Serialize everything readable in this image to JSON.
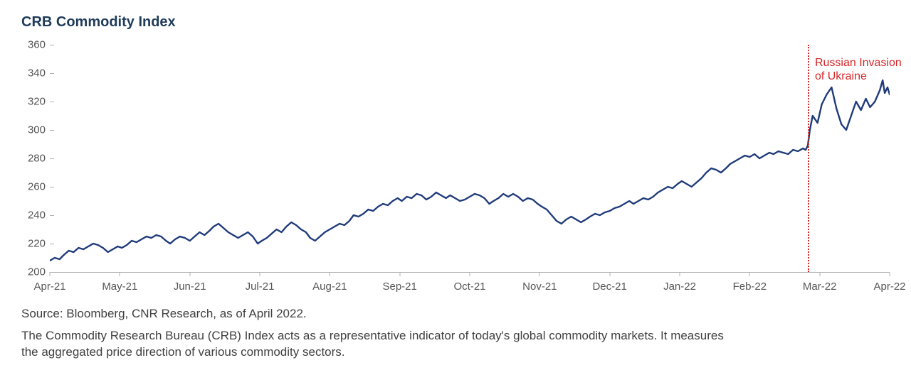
{
  "chart": {
    "type": "line",
    "title": "CRB Commodity Index",
    "title_color": "#1f3b5a",
    "title_fontsize": 20,
    "background_color": "#ffffff",
    "axis_color": "#b0b0b0",
    "tick_label_color": "#555555",
    "tick_fontsize": 15,
    "line_color": "#1f3b7a",
    "line_width": 2.4,
    "ylim": [
      200,
      360
    ],
    "ytick_step": 20,
    "yticks": [
      200,
      220,
      240,
      260,
      280,
      300,
      320,
      340,
      360
    ],
    "x_labels": [
      "Apr-21",
      "May-21",
      "Jun-21",
      "Jul-21",
      "Aug-21",
      "Sep-21",
      "Oct-21",
      "Nov-21",
      "Dec-21",
      "Jan-22",
      "Feb-22",
      "Mar-22",
      "Apr-22"
    ],
    "x_domain": [
      0,
      12
    ],
    "x_major": [
      0,
      1,
      2,
      3,
      4,
      5,
      6,
      7,
      8,
      9,
      10,
      11,
      12
    ],
    "data": [
      [
        0.0,
        208
      ],
      [
        0.07,
        210
      ],
      [
        0.14,
        209
      ],
      [
        0.2,
        212
      ],
      [
        0.27,
        215
      ],
      [
        0.34,
        214
      ],
      [
        0.41,
        217
      ],
      [
        0.48,
        216
      ],
      [
        0.55,
        218
      ],
      [
        0.62,
        220
      ],
      [
        0.69,
        219
      ],
      [
        0.76,
        217
      ],
      [
        0.83,
        214
      ],
      [
        0.9,
        216
      ],
      [
        0.97,
        218
      ],
      [
        1.03,
        217
      ],
      [
        1.1,
        219
      ],
      [
        1.17,
        222
      ],
      [
        1.24,
        221
      ],
      [
        1.31,
        223
      ],
      [
        1.38,
        225
      ],
      [
        1.45,
        224
      ],
      [
        1.52,
        226
      ],
      [
        1.59,
        225
      ],
      [
        1.66,
        222
      ],
      [
        1.72,
        220
      ],
      [
        1.79,
        223
      ],
      [
        1.86,
        225
      ],
      [
        1.93,
        224
      ],
      [
        2.0,
        222
      ],
      [
        2.07,
        225
      ],
      [
        2.14,
        228
      ],
      [
        2.21,
        226
      ],
      [
        2.28,
        229
      ],
      [
        2.34,
        232
      ],
      [
        2.41,
        234
      ],
      [
        2.48,
        231
      ],
      [
        2.55,
        228
      ],
      [
        2.62,
        226
      ],
      [
        2.69,
        224
      ],
      [
        2.76,
        226
      ],
      [
        2.83,
        228
      ],
      [
        2.9,
        225
      ],
      [
        2.97,
        220
      ],
      [
        3.03,
        222
      ],
      [
        3.1,
        224
      ],
      [
        3.17,
        227
      ],
      [
        3.24,
        230
      ],
      [
        3.31,
        228
      ],
      [
        3.38,
        232
      ],
      [
        3.45,
        235
      ],
      [
        3.52,
        233
      ],
      [
        3.59,
        230
      ],
      [
        3.66,
        228
      ],
      [
        3.72,
        224
      ],
      [
        3.79,
        222
      ],
      [
        3.86,
        225
      ],
      [
        3.93,
        228
      ],
      [
        4.0,
        230
      ],
      [
        4.07,
        232
      ],
      [
        4.14,
        234
      ],
      [
        4.21,
        233
      ],
      [
        4.28,
        236
      ],
      [
        4.34,
        240
      ],
      [
        4.41,
        239
      ],
      [
        4.48,
        241
      ],
      [
        4.55,
        244
      ],
      [
        4.62,
        243
      ],
      [
        4.69,
        246
      ],
      [
        4.76,
        248
      ],
      [
        4.83,
        247
      ],
      [
        4.9,
        250
      ],
      [
        4.97,
        252
      ],
      [
        5.03,
        250
      ],
      [
        5.1,
        253
      ],
      [
        5.17,
        252
      ],
      [
        5.24,
        255
      ],
      [
        5.31,
        254
      ],
      [
        5.38,
        251
      ],
      [
        5.45,
        253
      ],
      [
        5.52,
        256
      ],
      [
        5.59,
        254
      ],
      [
        5.66,
        252
      ],
      [
        5.72,
        254
      ],
      [
        5.79,
        252
      ],
      [
        5.86,
        250
      ],
      [
        5.93,
        251
      ],
      [
        6.0,
        253
      ],
      [
        6.07,
        255
      ],
      [
        6.14,
        254
      ],
      [
        6.21,
        252
      ],
      [
        6.28,
        248
      ],
      [
        6.34,
        250
      ],
      [
        6.41,
        252
      ],
      [
        6.48,
        255
      ],
      [
        6.55,
        253
      ],
      [
        6.62,
        255
      ],
      [
        6.69,
        253
      ],
      [
        6.76,
        250
      ],
      [
        6.83,
        252
      ],
      [
        6.9,
        251
      ],
      [
        6.97,
        248
      ],
      [
        7.03,
        246
      ],
      [
        7.1,
        244
      ],
      [
        7.17,
        240
      ],
      [
        7.24,
        236
      ],
      [
        7.31,
        234
      ],
      [
        7.38,
        237
      ],
      [
        7.45,
        239
      ],
      [
        7.52,
        237
      ],
      [
        7.59,
        235
      ],
      [
        7.66,
        237
      ],
      [
        7.72,
        239
      ],
      [
        7.79,
        241
      ],
      [
        7.86,
        240
      ],
      [
        7.93,
        242
      ],
      [
        8.0,
        243
      ],
      [
        8.07,
        245
      ],
      [
        8.14,
        246
      ],
      [
        8.21,
        248
      ],
      [
        8.28,
        250
      ],
      [
        8.34,
        248
      ],
      [
        8.41,
        250
      ],
      [
        8.48,
        252
      ],
      [
        8.55,
        251
      ],
      [
        8.62,
        253
      ],
      [
        8.69,
        256
      ],
      [
        8.76,
        258
      ],
      [
        8.83,
        260
      ],
      [
        8.9,
        259
      ],
      [
        8.97,
        262
      ],
      [
        9.03,
        264
      ],
      [
        9.1,
        262
      ],
      [
        9.17,
        260
      ],
      [
        9.24,
        263
      ],
      [
        9.31,
        266
      ],
      [
        9.38,
        270
      ],
      [
        9.45,
        273
      ],
      [
        9.52,
        272
      ],
      [
        9.59,
        270
      ],
      [
        9.66,
        273
      ],
      [
        9.72,
        276
      ],
      [
        9.79,
        278
      ],
      [
        9.86,
        280
      ],
      [
        9.93,
        282
      ],
      [
        10.0,
        281
      ],
      [
        10.07,
        283
      ],
      [
        10.14,
        280
      ],
      [
        10.21,
        282
      ],
      [
        10.28,
        284
      ],
      [
        10.34,
        283
      ],
      [
        10.41,
        285
      ],
      [
        10.48,
        284
      ],
      [
        10.55,
        283
      ],
      [
        10.62,
        286
      ],
      [
        10.69,
        285
      ],
      [
        10.76,
        287
      ],
      [
        10.8,
        286
      ],
      [
        10.83,
        289
      ],
      [
        10.86,
        300
      ],
      [
        10.9,
        310
      ],
      [
        10.97,
        305
      ],
      [
        11.03,
        318
      ],
      [
        11.1,
        325
      ],
      [
        11.17,
        330
      ],
      [
        11.24,
        315
      ],
      [
        11.31,
        304
      ],
      [
        11.38,
        300
      ],
      [
        11.45,
        310
      ],
      [
        11.52,
        320
      ],
      [
        11.59,
        314
      ],
      [
        11.66,
        322
      ],
      [
        11.72,
        316
      ],
      [
        11.79,
        320
      ],
      [
        11.86,
        328
      ],
      [
        11.9,
        335
      ],
      [
        11.93,
        326
      ],
      [
        11.97,
        330
      ],
      [
        12.0,
        325
      ]
    ],
    "annotation": {
      "x": 10.83,
      "line_color": "#d62728",
      "line_style": "dotted",
      "line_width": 2.5,
      "text": "Russian Invasion\nof Ukraine",
      "text_color": "#d62728",
      "text_fontsize": 16,
      "text_offset_x": 10,
      "text_y_value": 352
    }
  },
  "footer": {
    "source": "Source: Bloomberg, CNR Research, as of April 2022.",
    "description": "The Commodity Research Bureau (CRB) Index acts as a representative indicator of today's global commodity markets. It measures the aggregated price direction of various commodity sectors.",
    "text_color": "#404040",
    "fontsize": 17
  }
}
